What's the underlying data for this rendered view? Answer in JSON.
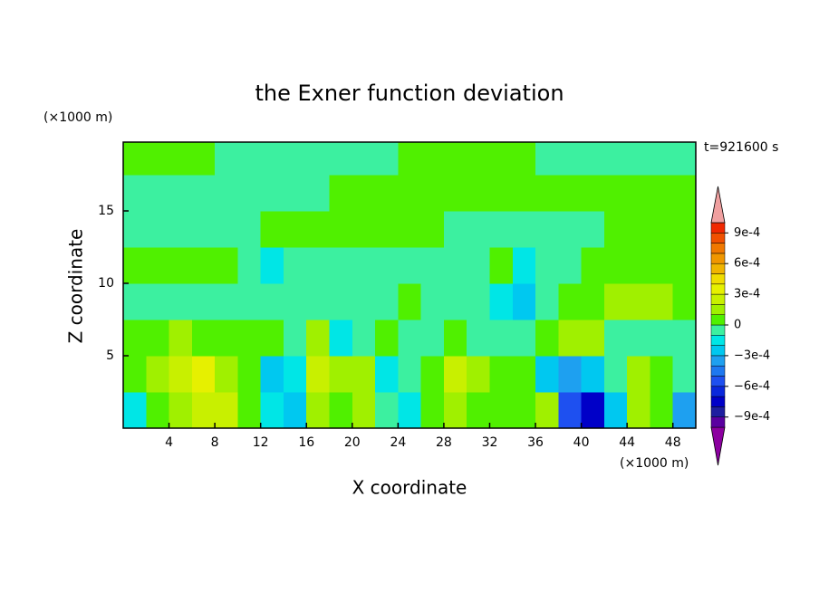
{
  "chart_data": {
    "type": "contour",
    "title": "the Exner function deviation",
    "x_label": "X coordinate",
    "y_label": "Z coordinate",
    "x_unit": "(×1000 m)",
    "y_unit": "(×1000 m)",
    "time_label": "t=921600 s",
    "xlim": [
      0,
      50
    ],
    "ylim": [
      0,
      19.75
    ],
    "xticks": [
      4,
      8,
      12,
      16,
      20,
      24,
      28,
      32,
      36,
      40,
      44,
      48
    ],
    "yticks": [
      5,
      10,
      15
    ],
    "x": [
      1,
      3,
      5,
      7,
      9,
      11,
      13,
      15,
      17,
      19,
      21,
      23,
      25,
      27,
      29,
      31,
      33,
      35,
      37,
      39,
      41,
      43,
      45,
      47,
      49
    ],
    "y": [
      1.25,
      3.75,
      6.25,
      8.75,
      11.25,
      13.75,
      16.25,
      18.75
    ],
    "z": [
      [
        -0.00015,
        5e-05,
        0.00015,
        0.00025,
        0.00025,
        5e-05,
        -0.00015,
        -0.00025,
        0.00015,
        5e-05,
        0.00015,
        -5e-05,
        -0.00015,
        5e-05,
        0.00015,
        5e-05,
        5e-05,
        5e-05,
        0.00015,
        -0.00055,
        -0.00075,
        -0.00025,
        0.00015,
        5e-05,
        -0.00035
      ],
      [
        5e-05,
        0.00015,
        0.00025,
        0.00035,
        0.00015,
        5e-05,
        -0.00025,
        -0.00015,
        0.00025,
        0.00015,
        0.00015,
        -0.00015,
        -5e-05,
        5e-05,
        0.00025,
        0.00015,
        5e-05,
        5e-05,
        -0.00025,
        -0.00035,
        -0.00025,
        -5e-05,
        0.00015,
        5e-05,
        -5e-05
      ],
      [
        5e-05,
        5e-05,
        0.00015,
        5e-05,
        5e-05,
        5e-05,
        5e-05,
        -5e-05,
        0.00015,
        -0.00015,
        -5e-05,
        5e-05,
        -5e-05,
        -5e-05,
        5e-05,
        -5e-05,
        -5e-05,
        -5e-05,
        5e-05,
        0.00015,
        0.00015,
        -5e-05,
        -5e-05,
        -5e-05,
        -5e-05
      ],
      [
        -5e-05,
        -5e-05,
        -5e-05,
        -5e-05,
        -5e-05,
        -5e-05,
        -5e-05,
        -5e-05,
        -5e-05,
        -5e-05,
        -5e-05,
        -5e-05,
        5e-05,
        -5e-05,
        -5e-05,
        -5e-05,
        -0.00015,
        -0.00025,
        -5e-05,
        5e-05,
        5e-05,
        0.00015,
        0.00015,
        0.00015,
        5e-05
      ],
      [
        5e-05,
        5e-05,
        5e-05,
        5e-05,
        5e-05,
        -5e-05,
        -0.00015,
        -5e-05,
        -5e-05,
        -5e-05,
        -5e-05,
        -5e-05,
        -5e-05,
        -5e-05,
        -5e-05,
        -5e-05,
        5e-05,
        -0.00015,
        -5e-05,
        -5e-05,
        5e-05,
        5e-05,
        5e-05,
        5e-05,
        5e-05
      ],
      [
        -5e-05,
        -5e-05,
        -5e-05,
        -5e-05,
        -5e-05,
        -5e-05,
        5e-05,
        5e-05,
        5e-05,
        5e-05,
        5e-05,
        5e-05,
        5e-05,
        5e-05,
        -5e-05,
        -5e-05,
        -5e-05,
        -5e-05,
        -5e-05,
        -5e-05,
        -5e-05,
        5e-05,
        5e-05,
        5e-05,
        5e-05
      ],
      [
        -5e-05,
        -5e-05,
        -5e-05,
        -5e-05,
        -5e-05,
        -5e-05,
        -5e-05,
        -5e-05,
        -5e-05,
        5e-05,
        5e-05,
        5e-05,
        5e-05,
        5e-05,
        5e-05,
        5e-05,
        5e-05,
        5e-05,
        5e-05,
        5e-05,
        5e-05,
        5e-05,
        5e-05,
        5e-05,
        5e-05
      ],
      [
        5e-05,
        5e-05,
        5e-05,
        5e-05,
        -5e-05,
        -5e-05,
        -5e-05,
        -5e-05,
        -5e-05,
        -5e-05,
        -5e-05,
        -5e-05,
        5e-05,
        5e-05,
        5e-05,
        5e-05,
        5e-05,
        5e-05,
        -5e-05,
        -5e-05,
        -5e-05,
        -5e-05,
        -5e-05,
        -5e-05,
        -5e-05
      ]
    ],
    "levels": [
      -0.001,
      -0.0009,
      -0.0008,
      -0.0007,
      -0.0006,
      -0.0005,
      -0.0004,
      -0.0003,
      -0.0002,
      -0.0001,
      0,
      0.0001,
      0.0002,
      0.0003,
      0.0004,
      0.0005,
      0.0006,
      0.0007,
      0.0008,
      0.0009,
      0.001
    ],
    "colors": [
      "#8c00a0",
      "#5a00a0",
      "#1e1ea0",
      "#0000c8",
      "#0a28dc",
      "#1e50f0",
      "#1e78f0",
      "#1ea0f0",
      "#00c8f0",
      "#00e6e6",
      "#3cf0a0",
      "#50f000",
      "#a0f000",
      "#c8f000",
      "#e6f000",
      "#f0dc00",
      "#f0b400",
      "#f09600",
      "#f07800",
      "#f05000",
      "#f02800",
      "#f0a0a0"
    ],
    "colorbar_ticks": [
      {
        "value": 0.0009,
        "label": "9e-4"
      },
      {
        "value": 0.0006,
        "label": "6e-4"
      },
      {
        "value": 0.0003,
        "label": "3e-4"
      },
      0,
      {
        "value": -0.0003,
        "label": "−3e-4"
      },
      {
        "value": -0.0006,
        "label": "−6e-4"
      },
      {
        "value": -0.0009,
        "label": "−9e-4"
      }
    ]
  }
}
